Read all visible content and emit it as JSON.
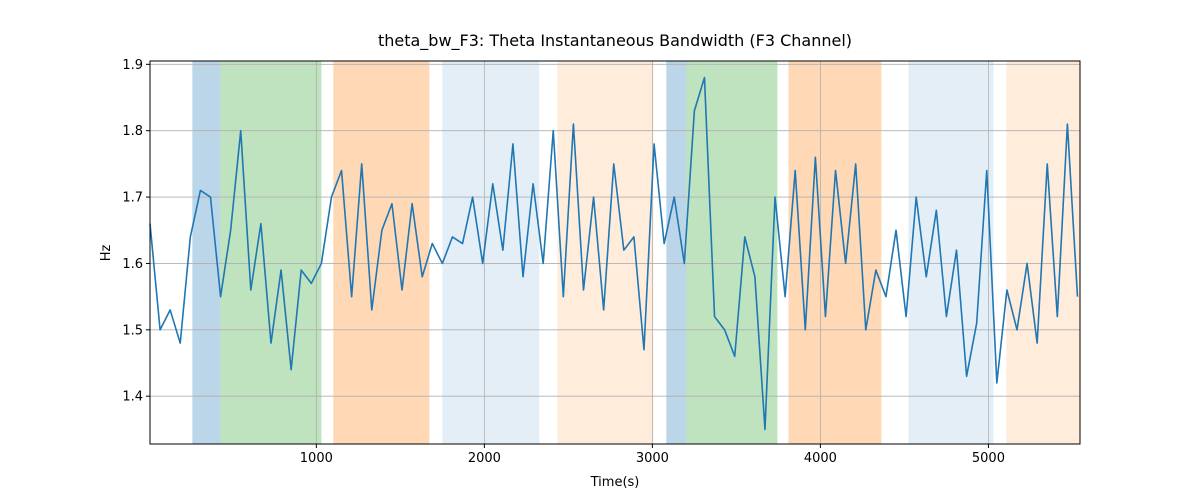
{
  "chart_data": {
    "type": "line",
    "title": "theta_bw_F3: Theta Instantaneous Bandwidth (F3 Channel)",
    "xlabel": "Time(s)",
    "ylabel": "Hz",
    "x": [
      10,
      70,
      130,
      190,
      250,
      310,
      370,
      430,
      490,
      550,
      610,
      670,
      730,
      790,
      850,
      910,
      970,
      1030,
      1090,
      1150,
      1210,
      1270,
      1330,
      1390,
      1450,
      1510,
      1570,
      1630,
      1690,
      1750,
      1810,
      1870,
      1930,
      1990,
      2050,
      2110,
      2170,
      2230,
      2290,
      2350,
      2410,
      2470,
      2530,
      2590,
      2650,
      2710,
      2770,
      2830,
      2890,
      2950,
      3010,
      3070,
      3130,
      3190,
      3250,
      3310,
      3370,
      3430,
      3490,
      3550,
      3610,
      3670,
      3730,
      3790,
      3850,
      3910,
      3970,
      4030,
      4090,
      4150,
      4210,
      4270,
      4330,
      4390,
      4450,
      4510,
      4570,
      4630,
      4690,
      4750,
      4810,
      4870,
      4930,
      4990,
      5050,
      5110,
      5170,
      5230,
      5290,
      5350,
      5410,
      5470,
      5530
    ],
    "series": [
      {
        "name": "theta_bw_F3",
        "color": "#1f77b4",
        "values": [
          1.66,
          1.5,
          1.53,
          1.48,
          1.64,
          1.71,
          1.7,
          1.55,
          1.65,
          1.8,
          1.56,
          1.66,
          1.48,
          1.59,
          1.44,
          1.59,
          1.57,
          1.6,
          1.7,
          1.74,
          1.55,
          1.75,
          1.53,
          1.65,
          1.69,
          1.56,
          1.69,
          1.58,
          1.63,
          1.6,
          1.64,
          1.63,
          1.7,
          1.6,
          1.72,
          1.62,
          1.78,
          1.58,
          1.72,
          1.6,
          1.8,
          1.55,
          1.81,
          1.56,
          1.7,
          1.53,
          1.75,
          1.62,
          1.64,
          1.47,
          1.78,
          1.63,
          1.7,
          1.6,
          1.83,
          1.88,
          1.52,
          1.5,
          1.46,
          1.64,
          1.58,
          1.35,
          1.7,
          1.55,
          1.74,
          1.5,
          1.76,
          1.52,
          1.74,
          1.6,
          1.75,
          1.5,
          1.59,
          1.55,
          1.65,
          1.52,
          1.7,
          1.58,
          1.68,
          1.52,
          1.62,
          1.43,
          1.51,
          1.74,
          1.42,
          1.56,
          1.5,
          1.6,
          1.48,
          1.75,
          1.52,
          1.81,
          1.55
        ]
      }
    ],
    "spans": [
      {
        "start": 262,
        "end": 429,
        "color": "#1f77b4",
        "opacity": 0.3
      },
      {
        "start": 429,
        "end": 1030,
        "color": "#2ca02c",
        "opacity": 0.3
      },
      {
        "start": 1101,
        "end": 1673,
        "color": "#ff7f0e",
        "opacity": 0.3
      },
      {
        "start": 1750,
        "end": 2327,
        "color": "#1f77b4",
        "opacity": 0.12
      },
      {
        "start": 2435,
        "end": 3006,
        "color": "#ff7f0e",
        "opacity": 0.15
      },
      {
        "start": 3083,
        "end": 3202,
        "color": "#1f77b4",
        "opacity": 0.3
      },
      {
        "start": 3202,
        "end": 3744,
        "color": "#2ca02c",
        "opacity": 0.3
      },
      {
        "start": 3810,
        "end": 4363,
        "color": "#ff7f0e",
        "opacity": 0.3
      },
      {
        "start": 4524,
        "end": 5030,
        "color": "#1f77b4",
        "opacity": 0.12
      },
      {
        "start": 5107,
        "end": 5548,
        "color": "#ff7f0e",
        "opacity": 0.15
      }
    ],
    "xlim": [
      10,
      5545
    ],
    "ylim": [
      1.328,
      1.905
    ],
    "xticks": [
      1000,
      2000,
      3000,
      4000,
      5000
    ],
    "yticks": [
      1.4,
      1.5,
      1.6,
      1.7,
      1.8,
      1.9
    ],
    "grid": true
  }
}
